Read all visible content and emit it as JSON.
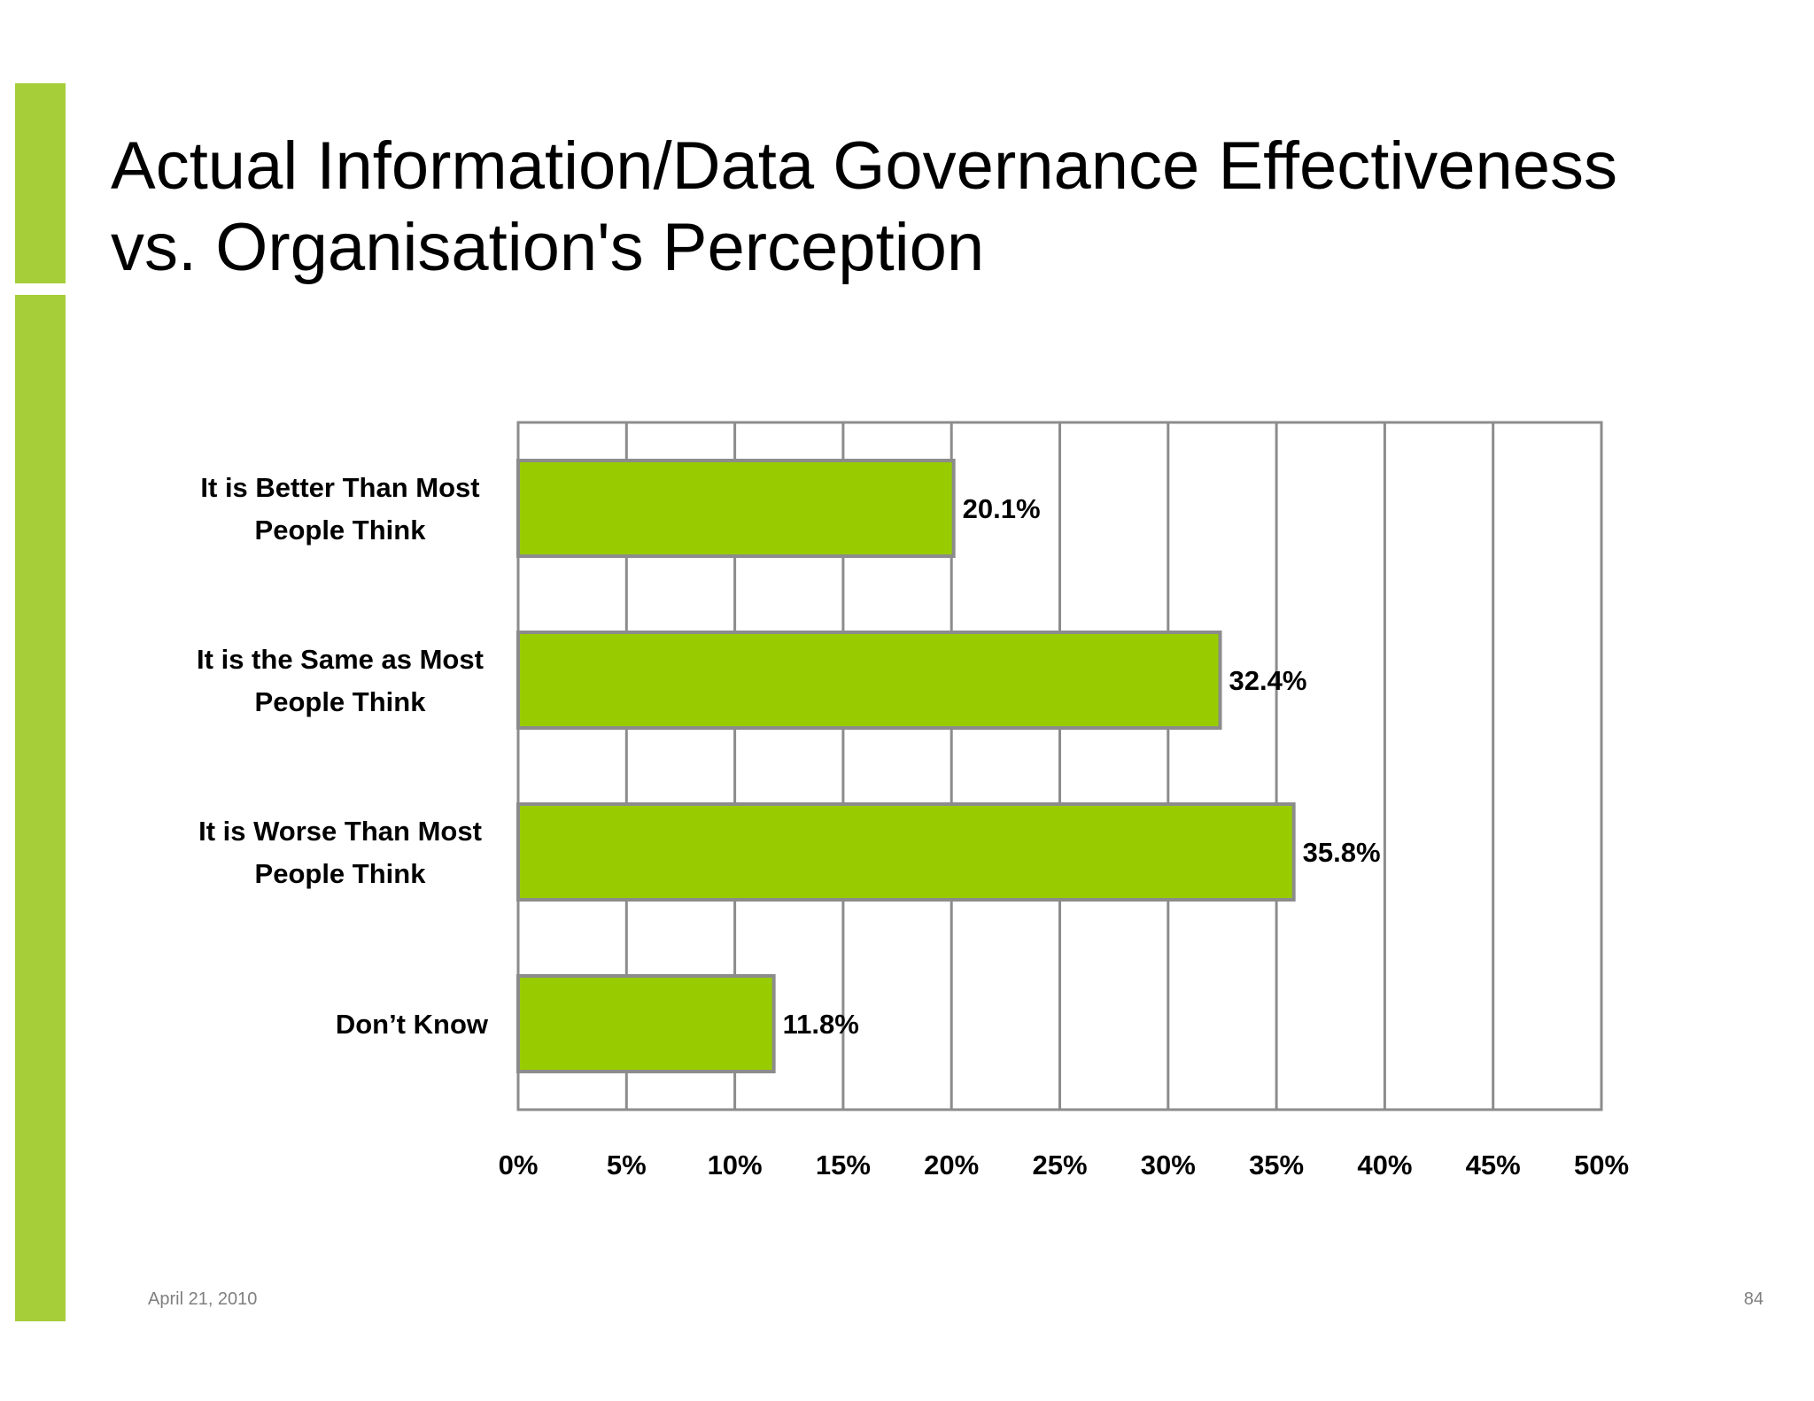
{
  "slide": {
    "title_line1": "Actual Information/Data Governance Effectiveness",
    "title_line2": "vs. Organisation's Perception",
    "footer_date": "April 21, 2010",
    "page_number": "84"
  },
  "colors": {
    "accent": "#a6ce39",
    "bar_fill": "#99cc00",
    "bar_stroke": "#8c8c8c",
    "grid": "#8c8c8c"
  },
  "chart_data": {
    "type": "bar",
    "orientation": "horizontal",
    "title": "",
    "xlabel": "",
    "ylabel": "",
    "categories": [
      [
        "It is Better Than Most",
        "People Think"
      ],
      [
        "It is the Same as Most",
        "People Think"
      ],
      [
        "It is Worse Than Most",
        "People Think"
      ],
      [
        "Don’t Know"
      ]
    ],
    "values": [
      20.1,
      32.4,
      35.8,
      11.8
    ],
    "value_labels": [
      "20.1%",
      "32.4%",
      "35.8%",
      "11.8%"
    ],
    "xlim": [
      0,
      50
    ],
    "xticks": [
      0,
      5,
      10,
      15,
      20,
      25,
      30,
      35,
      40,
      45,
      50
    ],
    "xtick_labels": [
      "0%",
      "5%",
      "10%",
      "15%",
      "20%",
      "25%",
      "30%",
      "35%",
      "40%",
      "45%",
      "50%"
    ],
    "grid": true,
    "legend": "none"
  }
}
